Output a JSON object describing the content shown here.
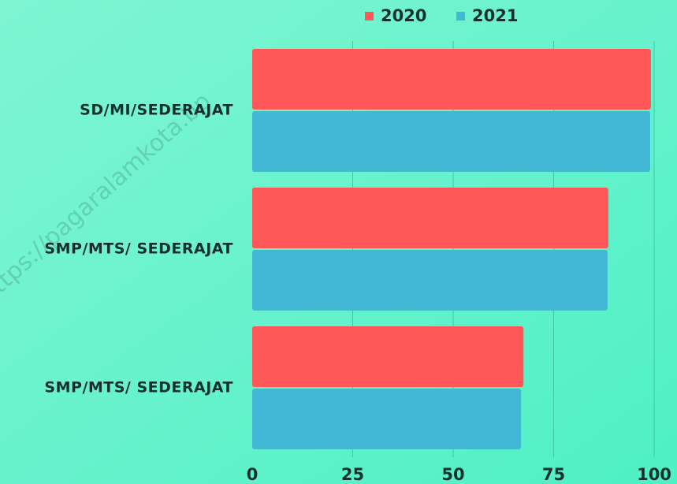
{
  "chart_data": {
    "type": "barh",
    "categories": [
      "SD/MI/SEDERAJAT",
      "SMP/MTS/ SEDERAJAT",
      "SMP/MTS/ SEDERAJAT"
    ],
    "series": [
      {
        "name": "2020",
        "color": "#ff5757",
        "values": [
          99.2,
          88.6,
          67.5
        ]
      },
      {
        "name": "2021",
        "color": "#42b8d6",
        "values": [
          99.0,
          88.4,
          66.9
        ]
      }
    ],
    "xlim": [
      0,
      100
    ],
    "xticks": [
      0,
      25,
      50,
      75,
      100
    ],
    "grid": true,
    "legend": "top",
    "annotation": "https://pagaralamkota.bp"
  }
}
